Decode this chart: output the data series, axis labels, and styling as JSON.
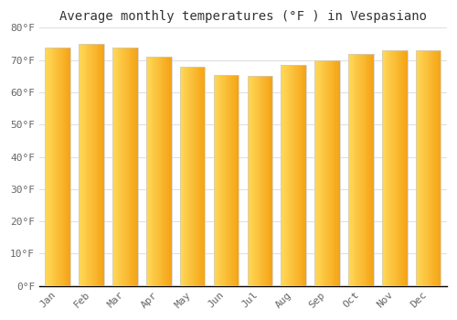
{
  "title": "Average monthly temperatures (°F ) in Vespasiano",
  "months": [
    "Jan",
    "Feb",
    "Mar",
    "Apr",
    "May",
    "Jun",
    "Jul",
    "Aug",
    "Sep",
    "Oct",
    "Nov",
    "Dec"
  ],
  "values": [
    74,
    75,
    74,
    71,
    68,
    65.5,
    65,
    68.5,
    70,
    72,
    73,
    73
  ],
  "bar_color_dark": "#F5A800",
  "bar_color_light": "#FFD060",
  "ylim": [
    0,
    80
  ],
  "yticks": [
    0,
    10,
    20,
    30,
    40,
    50,
    60,
    70,
    80
  ],
  "ytick_labels": [
    "0°F",
    "10°F",
    "20°F",
    "30°F",
    "40°F",
    "50°F",
    "60°F",
    "70°F",
    "80°F"
  ],
  "bg_color": "#FFFFFF",
  "plot_bg_color": "#FFFFFF",
  "title_fontsize": 10,
  "tick_fontsize": 8,
  "grid_color": "#E0E0E0",
  "bar_edge_color": "#CCCCCC"
}
